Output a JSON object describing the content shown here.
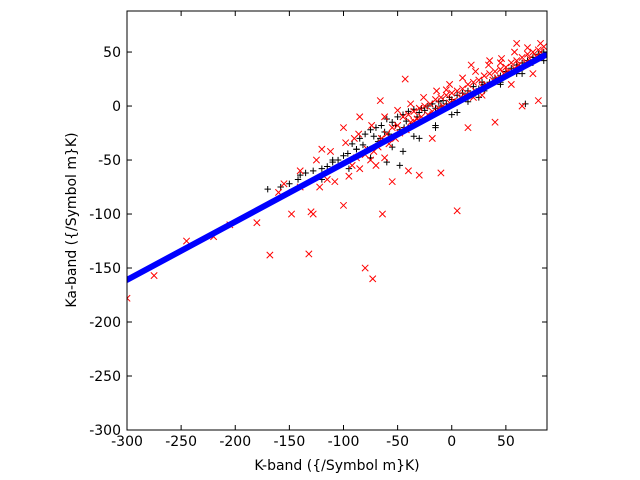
{
  "chart_data": {
    "type": "scatter",
    "title": "",
    "xlabel": "K-band ({/Symbol m}K)",
    "ylabel": "Ka-band ({/Symbol m}K)",
    "xlim": [
      -300,
      88
    ],
    "ylim": [
      -300,
      88
    ],
    "xticks": [
      -300,
      -250,
      -200,
      -150,
      -100,
      -50,
      0,
      50
    ],
    "yticks": [
      -300,
      -250,
      -200,
      -150,
      -100,
      -50,
      0,
      50
    ],
    "grid": false,
    "legend": "none",
    "series": [
      {
        "marker": "line",
        "color": "#0000ff",
        "x": [
          -300,
          88
        ],
        "y": [
          -161,
          48
        ]
      },
      {
        "marker": "plus",
        "color": "#000000",
        "x": [
          -170,
          -158,
          -150,
          -142,
          -135,
          -128,
          -120,
          -115,
          -110,
          -105,
          -100,
          -96,
          -92,
          -88,
          -85,
          -82,
          -80,
          -78,
          -75,
          -72,
          -70,
          -68,
          -65,
          -62,
          -60,
          -58,
          -55,
          -52,
          -50,
          -48,
          -45,
          -42,
          -40,
          -38,
          -35,
          -32,
          -30,
          -28,
          -25,
          -22,
          -20,
          -18,
          -15,
          -12,
          -10,
          -8,
          -5,
          -2,
          0,
          3,
          5,
          8,
          10,
          12,
          15,
          18,
          20,
          22,
          25,
          28,
          30,
          35,
          40,
          45,
          50,
          55,
          60,
          65,
          70,
          75,
          80,
          85,
          -60,
          -45,
          -30,
          -15,
          0,
          15,
          30,
          45,
          60,
          75,
          -150,
          -120,
          -95,
          -75,
          -55,
          -35,
          -15,
          5,
          25,
          45,
          65,
          85,
          -140,
          -110,
          -88,
          -66,
          -44,
          -22,
          0,
          22,
          44,
          66,
          -48,
          68
        ],
        "y": [
          -77,
          -75,
          -72,
          -68,
          -62,
          -60,
          -58,
          -56,
          -50,
          -50,
          -46,
          -44,
          -35,
          -40,
          -30,
          -36,
          -26,
          -40,
          -22,
          -28,
          -20,
          -33,
          -18,
          -24,
          -12,
          -26,
          -15,
          -18,
          -10,
          -22,
          -8,
          -14,
          -5,
          -18,
          -3,
          -10,
          -6,
          -2,
          -4,
          0,
          -8,
          2,
          -2,
          4,
          0,
          5,
          2,
          8,
          6,
          4,
          10,
          6,
          12,
          8,
          14,
          10,
          18,
          12,
          16,
          22,
          20,
          22,
          26,
          28,
          32,
          35,
          38,
          40,
          42,
          45,
          48,
          50,
          -52,
          -42,
          -30,
          -20,
          -8,
          4,
          14,
          22,
          30,
          40,
          -80,
          -68,
          -58,
          -48,
          -38,
          -28,
          -18,
          -6,
          8,
          20,
          30,
          42,
          -64,
          -52,
          -40,
          -30,
          -20,
          -10,
          2,
          12,
          24,
          36,
          -55,
          2
        ]
      },
      {
        "marker": "x",
        "color": "#ff0000",
        "x": [
          -300,
          -275,
          -245,
          -220,
          -205,
          -180,
          -168,
          -160,
          -148,
          -140,
          -132,
          -128,
          -122,
          -115,
          -108,
          -100,
          -95,
          -92,
          -88,
          -85,
          -80,
          -78,
          -75,
          -72,
          -70,
          -68,
          -65,
          -62,
          -60,
          -58,
          -55,
          -52,
          -50,
          -48,
          -45,
          -42,
          -40,
          -38,
          -35,
          -32,
          -30,
          -28,
          -25,
          -22,
          -20,
          -18,
          -15,
          -12,
          -10,
          -8,
          -5,
          -2,
          0,
          2,
          5,
          8,
          10,
          12,
          15,
          18,
          20,
          22,
          25,
          28,
          30,
          32,
          35,
          38,
          40,
          42,
          45,
          48,
          50,
          52,
          55,
          58,
          60,
          62,
          65,
          68,
          70,
          72,
          75,
          78,
          80,
          82,
          85,
          -155,
          -140,
          -125,
          -112,
          -98,
          -86,
          -74,
          -62,
          -50,
          -38,
          -26,
          -14,
          -2,
          10,
          22,
          34,
          46,
          58,
          70,
          82,
          5,
          -43,
          -90,
          -80,
          -73,
          -64,
          -130,
          -30,
          40,
          65,
          80,
          20,
          -100,
          -120,
          -55,
          -40,
          -10,
          15,
          55,
          75,
          28,
          -18,
          -85,
          -66,
          -35,
          45,
          35,
          60,
          18,
          -5
        ],
        "y": [
          -178,
          -157,
          -125,
          -121,
          -110,
          -108,
          -138,
          -80,
          -100,
          -75,
          -137,
          -100,
          -75,
          -68,
          -70,
          -92,
          -65,
          -55,
          -48,
          -58,
          -45,
          -40,
          -50,
          -42,
          -55,
          -38,
          -30,
          -48,
          -26,
          -35,
          -20,
          -30,
          -18,
          -25,
          -10,
          -22,
          -8,
          -15,
          -5,
          -12,
          -2,
          -10,
          0,
          -8,
          2,
          -5,
          6,
          -2,
          8,
          0,
          10,
          3,
          12,
          5,
          14,
          8,
          16,
          10,
          20,
          12,
          22,
          14,
          24,
          18,
          28,
          20,
          30,
          24,
          32,
          26,
          34,
          30,
          36,
          32,
          40,
          35,
          42,
          38,
          45,
          40,
          48,
          44,
          50,
          46,
          52,
          50,
          55,
          -72,
          -60,
          -50,
          -42,
          -34,
          -26,
          -18,
          -10,
          -4,
          2,
          8,
          14,
          20,
          26,
          32,
          38,
          44,
          50,
          54,
          58,
          -97,
          25,
          -30,
          -150,
          -160,
          -100,
          -98,
          -64,
          -15,
          0,
          5,
          8,
          -20,
          -40,
          -70,
          -60,
          -62,
          -20,
          20,
          30,
          10,
          -30,
          -10,
          5,
          -14,
          40,
          42,
          58,
          38,
          15
        ]
      }
    ]
  }
}
